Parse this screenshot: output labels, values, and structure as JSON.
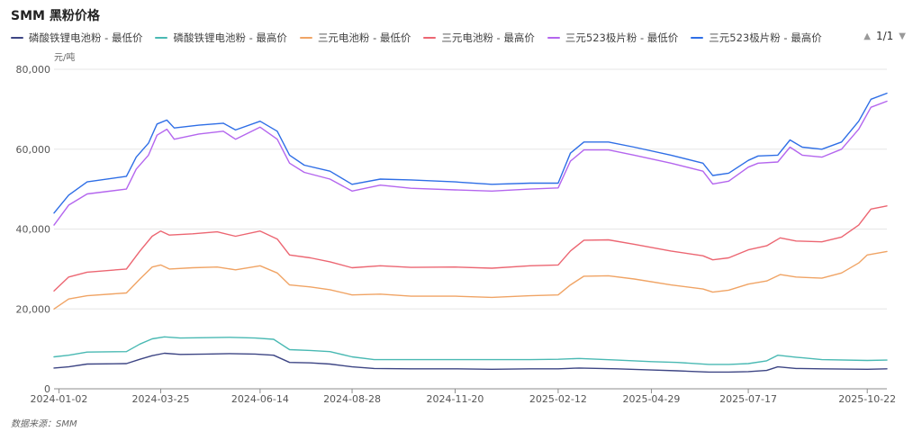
{
  "title": "SMM 黑粉价格",
  "unit": "元/吨",
  "source": "数据来源：SMM",
  "pager": {
    "prev_icon": "▲",
    "next_icon": "▼",
    "text": "1/1"
  },
  "chart_data": {
    "type": "line",
    "title": "SMM 黑粉价格",
    "ylabel": "元/吨",
    "xlabel": "",
    "ylim": [
      0,
      80000
    ],
    "yticks": [
      0,
      20000,
      40000,
      60000,
      80000
    ],
    "ytick_labels": [
      "0",
      "20,000",
      "40,000",
      "60,000",
      "80,000"
    ],
    "xlim": [
      "2023-12-29",
      "2025-11-07"
    ],
    "xticks": [
      "2024-01-02",
      "2024-03-25",
      "2024-06-14",
      "2024-08-28",
      "2024-11-20",
      "2025-02-12",
      "2025-04-29",
      "2025-07-17",
      "2025-10-22"
    ],
    "grid": "horizontal",
    "legend_position": "top",
    "series": [
      {
        "name": "磷酸铁锂电池粉 - 最低价",
        "color": "#3d4584",
        "points": [
          [
            "2023-12-29",
            5200
          ],
          [
            "2024-01-10",
            5500
          ],
          [
            "2024-01-25",
            6200
          ],
          [
            "2024-02-26",
            6300
          ],
          [
            "2024-03-08",
            7400
          ],
          [
            "2024-03-18",
            8300
          ],
          [
            "2024-03-28",
            8900
          ],
          [
            "2024-04-10",
            8600
          ],
          [
            "2024-05-01",
            8700
          ],
          [
            "2024-05-20",
            8800
          ],
          [
            "2024-06-10",
            8700
          ],
          [
            "2024-06-25",
            8400
          ],
          [
            "2024-07-08",
            6600
          ],
          [
            "2024-07-25",
            6500
          ],
          [
            "2024-08-10",
            6200
          ],
          [
            "2024-08-28",
            5500
          ],
          [
            "2024-09-15",
            5100
          ],
          [
            "2024-10-15",
            5000
          ],
          [
            "2024-11-20",
            5000
          ],
          [
            "2024-12-20",
            4900
          ],
          [
            "2025-01-20",
            5000
          ],
          [
            "2025-02-12",
            5000
          ],
          [
            "2025-03-01",
            5200
          ],
          [
            "2025-04-01",
            5000
          ],
          [
            "2025-04-29",
            4700
          ],
          [
            "2025-05-20",
            4500
          ],
          [
            "2025-06-15",
            4200
          ],
          [
            "2025-07-01",
            4200
          ],
          [
            "2025-07-17",
            4300
          ],
          [
            "2025-08-01",
            4600
          ],
          [
            "2025-08-10",
            5500
          ],
          [
            "2025-08-25",
            5100
          ],
          [
            "2025-09-15",
            5000
          ],
          [
            "2025-10-22",
            4900
          ],
          [
            "2025-11-07",
            5000
          ]
        ]
      },
      {
        "name": "磷酸铁锂电池粉 - 最高价",
        "color": "#49b9b3",
        "points": [
          [
            "2023-12-29",
            8000
          ],
          [
            "2024-01-10",
            8400
          ],
          [
            "2024-01-25",
            9200
          ],
          [
            "2024-02-26",
            9300
          ],
          [
            "2024-03-08",
            11200
          ],
          [
            "2024-03-18",
            12500
          ],
          [
            "2024-03-28",
            13000
          ],
          [
            "2024-04-10",
            12700
          ],
          [
            "2024-05-01",
            12800
          ],
          [
            "2024-05-20",
            12900
          ],
          [
            "2024-06-10",
            12700
          ],
          [
            "2024-06-25",
            12400
          ],
          [
            "2024-07-08",
            9800
          ],
          [
            "2024-07-25",
            9600
          ],
          [
            "2024-08-10",
            9300
          ],
          [
            "2024-08-28",
            8000
          ],
          [
            "2024-09-15",
            7300
          ],
          [
            "2024-10-15",
            7300
          ],
          [
            "2024-11-20",
            7300
          ],
          [
            "2024-12-20",
            7300
          ],
          [
            "2025-01-20",
            7300
          ],
          [
            "2025-02-12",
            7400
          ],
          [
            "2025-03-01",
            7600
          ],
          [
            "2025-04-01",
            7200
          ],
          [
            "2025-04-29",
            6800
          ],
          [
            "2025-05-20",
            6600
          ],
          [
            "2025-06-15",
            6100
          ],
          [
            "2025-07-01",
            6100
          ],
          [
            "2025-07-17",
            6300
          ],
          [
            "2025-08-01",
            7000
          ],
          [
            "2025-08-10",
            8400
          ],
          [
            "2025-08-25",
            7900
          ],
          [
            "2025-09-15",
            7300
          ],
          [
            "2025-10-22",
            7100
          ],
          [
            "2025-11-07",
            7200
          ]
        ]
      },
      {
        "name": "三元电池粉 - 最低价",
        "color": "#f0a465",
        "points": [
          [
            "2023-12-29",
            20000
          ],
          [
            "2024-01-10",
            22500
          ],
          [
            "2024-01-25",
            23300
          ],
          [
            "2024-02-26",
            24000
          ],
          [
            "2024-03-08",
            27500
          ],
          [
            "2024-03-18",
            30500
          ],
          [
            "2024-03-25",
            31000
          ],
          [
            "2024-04-01",
            30000
          ],
          [
            "2024-04-20",
            30300
          ],
          [
            "2024-05-10",
            30500
          ],
          [
            "2024-05-25",
            29800
          ],
          [
            "2024-06-14",
            30800
          ],
          [
            "2024-06-28",
            29000
          ],
          [
            "2024-07-08",
            26000
          ],
          [
            "2024-07-25",
            25500
          ],
          [
            "2024-08-10",
            24800
          ],
          [
            "2024-08-28",
            23500
          ],
          [
            "2024-09-20",
            23700
          ],
          [
            "2024-10-15",
            23200
          ],
          [
            "2024-11-20",
            23200
          ],
          [
            "2024-12-20",
            22900
          ],
          [
            "2025-01-20",
            23300
          ],
          [
            "2025-02-12",
            23500
          ],
          [
            "2025-02-22",
            26000
          ],
          [
            "2025-03-05",
            28200
          ],
          [
            "2025-03-25",
            28300
          ],
          [
            "2025-04-15",
            27500
          ],
          [
            "2025-05-15",
            26000
          ],
          [
            "2025-06-10",
            25000
          ],
          [
            "2025-06-18",
            24200
          ],
          [
            "2025-07-01",
            24700
          ],
          [
            "2025-07-17",
            26200
          ],
          [
            "2025-08-01",
            27000
          ],
          [
            "2025-08-12",
            28600
          ],
          [
            "2025-08-25",
            28000
          ],
          [
            "2025-09-15",
            27700
          ],
          [
            "2025-10-01",
            29000
          ],
          [
            "2025-10-15",
            31500
          ],
          [
            "2025-10-22",
            33500
          ],
          [
            "2025-11-07",
            34400
          ]
        ]
      },
      {
        "name": "三元电池粉 - 最高价",
        "color": "#ec6672",
        "points": [
          [
            "2023-12-29",
            24500
          ],
          [
            "2024-01-10",
            28000
          ],
          [
            "2024-01-25",
            29200
          ],
          [
            "2024-02-26",
            30000
          ],
          [
            "2024-03-08",
            34500
          ],
          [
            "2024-03-18",
            38200
          ],
          [
            "2024-03-25",
            39500
          ],
          [
            "2024-04-01",
            38500
          ],
          [
            "2024-04-20",
            38800
          ],
          [
            "2024-05-10",
            39300
          ],
          [
            "2024-05-25",
            38200
          ],
          [
            "2024-06-14",
            39500
          ],
          [
            "2024-06-28",
            37500
          ],
          [
            "2024-07-08",
            33500
          ],
          [
            "2024-07-25",
            32800
          ],
          [
            "2024-08-10",
            31800
          ],
          [
            "2024-08-28",
            30300
          ],
          [
            "2024-09-20",
            30800
          ],
          [
            "2024-10-15",
            30400
          ],
          [
            "2024-11-20",
            30500
          ],
          [
            "2024-12-20",
            30200
          ],
          [
            "2025-01-20",
            30800
          ],
          [
            "2025-02-12",
            31000
          ],
          [
            "2025-02-22",
            34500
          ],
          [
            "2025-03-05",
            37200
          ],
          [
            "2025-03-25",
            37300
          ],
          [
            "2025-04-15",
            36200
          ],
          [
            "2025-05-15",
            34500
          ],
          [
            "2025-06-10",
            33300
          ],
          [
            "2025-06-18",
            32300
          ],
          [
            "2025-07-01",
            32800
          ],
          [
            "2025-07-17",
            34800
          ],
          [
            "2025-08-01",
            35800
          ],
          [
            "2025-08-12",
            37800
          ],
          [
            "2025-08-25",
            37000
          ],
          [
            "2025-09-15",
            36800
          ],
          [
            "2025-10-01",
            38000
          ],
          [
            "2025-10-15",
            41000
          ],
          [
            "2025-10-25",
            45000
          ],
          [
            "2025-11-07",
            45800
          ]
        ]
      },
      {
        "name": "三元523极片粉 - 最低价",
        "color": "#b466ee",
        "points": [
          [
            "2023-12-29",
            41000
          ],
          [
            "2024-01-10",
            46000
          ],
          [
            "2024-01-25",
            48800
          ],
          [
            "2024-02-26",
            50000
          ],
          [
            "2024-03-05",
            55000
          ],
          [
            "2024-03-15",
            58500
          ],
          [
            "2024-03-22",
            63500
          ],
          [
            "2024-03-30",
            65000
          ],
          [
            "2024-04-05",
            62500
          ],
          [
            "2024-04-25",
            63800
          ],
          [
            "2024-05-15",
            64500
          ],
          [
            "2024-05-25",
            62500
          ],
          [
            "2024-06-14",
            65500
          ],
          [
            "2024-06-28",
            62500
          ],
          [
            "2024-07-08",
            56500
          ],
          [
            "2024-07-20",
            54200
          ],
          [
            "2024-08-10",
            52500
          ],
          [
            "2024-08-28",
            49500
          ],
          [
            "2024-09-20",
            51000
          ],
          [
            "2024-10-15",
            50200
          ],
          [
            "2024-11-20",
            49800
          ],
          [
            "2024-12-20",
            49500
          ],
          [
            "2025-01-20",
            50000
          ],
          [
            "2025-02-12",
            50300
          ],
          [
            "2025-02-22",
            57000
          ],
          [
            "2025-03-05",
            59800
          ],
          [
            "2025-03-25",
            59800
          ],
          [
            "2025-04-15",
            58500
          ],
          [
            "2025-05-15",
            56500
          ],
          [
            "2025-06-10",
            54500
          ],
          [
            "2025-06-18",
            51300
          ],
          [
            "2025-07-01",
            52000
          ],
          [
            "2025-07-17",
            55500
          ],
          [
            "2025-07-25",
            56500
          ],
          [
            "2025-08-10",
            56800
          ],
          [
            "2025-08-20",
            60500
          ],
          [
            "2025-08-30",
            58500
          ],
          [
            "2025-09-15",
            58000
          ],
          [
            "2025-10-01",
            60000
          ],
          [
            "2025-10-15",
            65000
          ],
          [
            "2025-10-25",
            70500
          ],
          [
            "2025-11-07",
            72000
          ]
        ]
      },
      {
        "name": "三元523极片粉 - 最高价",
        "color": "#2e6ee6",
        "points": [
          [
            "2023-12-29",
            44000
          ],
          [
            "2024-01-10",
            48500
          ],
          [
            "2024-01-25",
            51800
          ],
          [
            "2024-02-26",
            53200
          ],
          [
            "2024-03-05",
            58000
          ],
          [
            "2024-03-15",
            61500
          ],
          [
            "2024-03-22",
            66300
          ],
          [
            "2024-03-30",
            67300
          ],
          [
            "2024-04-05",
            65300
          ],
          [
            "2024-04-25",
            66000
          ],
          [
            "2024-05-15",
            66500
          ],
          [
            "2024-05-25",
            64800
          ],
          [
            "2024-06-14",
            67000
          ],
          [
            "2024-06-28",
            64500
          ],
          [
            "2024-07-08",
            58500
          ],
          [
            "2024-07-20",
            56000
          ],
          [
            "2024-08-10",
            54500
          ],
          [
            "2024-08-28",
            51200
          ],
          [
            "2024-09-20",
            52500
          ],
          [
            "2024-10-15",
            52300
          ],
          [
            "2024-11-20",
            51800
          ],
          [
            "2024-12-20",
            51200
          ],
          [
            "2025-01-20",
            51500
          ],
          [
            "2025-02-12",
            51500
          ],
          [
            "2025-02-22",
            59000
          ],
          [
            "2025-03-05",
            61800
          ],
          [
            "2025-03-25",
            61800
          ],
          [
            "2025-04-15",
            60500
          ],
          [
            "2025-05-15",
            58500
          ],
          [
            "2025-06-10",
            56500
          ],
          [
            "2025-06-18",
            53400
          ],
          [
            "2025-07-01",
            54000
          ],
          [
            "2025-07-17",
            57200
          ],
          [
            "2025-07-25",
            58300
          ],
          [
            "2025-08-10",
            58500
          ],
          [
            "2025-08-20",
            62300
          ],
          [
            "2025-08-30",
            60500
          ],
          [
            "2025-09-15",
            60000
          ],
          [
            "2025-10-01",
            61800
          ],
          [
            "2025-10-15",
            67000
          ],
          [
            "2025-10-25",
            72500
          ],
          [
            "2025-11-07",
            74000
          ]
        ]
      }
    ]
  }
}
